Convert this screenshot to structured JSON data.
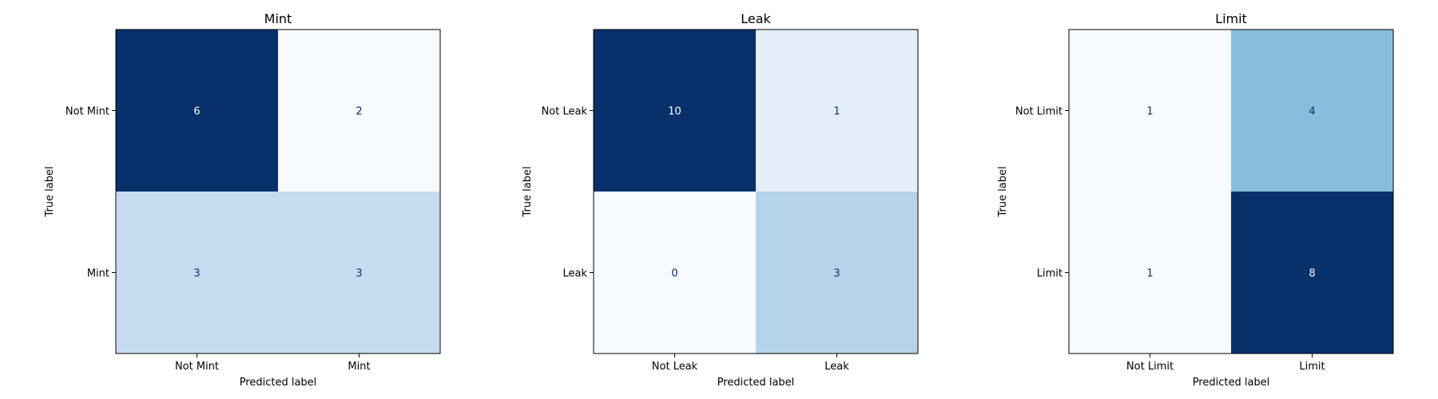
{
  "chart_data": [
    {
      "type": "heatmap",
      "title": "Mint",
      "xlabel": "Predicted label",
      "ylabel": "True label",
      "row_labels": [
        "Not Mint",
        "Mint"
      ],
      "col_labels": [
        "Not Mint",
        "Mint"
      ],
      "values": [
        [
          6,
          2
        ],
        [
          3,
          3
        ]
      ],
      "colormap": "Blues"
    },
    {
      "type": "heatmap",
      "title": "Leak",
      "xlabel": "Predicted label",
      "ylabel": "True label",
      "row_labels": [
        "Not Leak",
        "Leak"
      ],
      "col_labels": [
        "Not Leak",
        "Leak"
      ],
      "values": [
        [
          10,
          1
        ],
        [
          0,
          3
        ]
      ],
      "colormap": "Blues"
    },
    {
      "type": "heatmap",
      "title": "Limit",
      "xlabel": "Predicted label",
      "ylabel": "True label",
      "row_labels": [
        "Not Limit",
        "Limit"
      ],
      "col_labels": [
        "Not Limit",
        "Limit"
      ],
      "values": [
        [
          1,
          4
        ],
        [
          1,
          8
        ]
      ],
      "colormap": "Blues"
    }
  ]
}
